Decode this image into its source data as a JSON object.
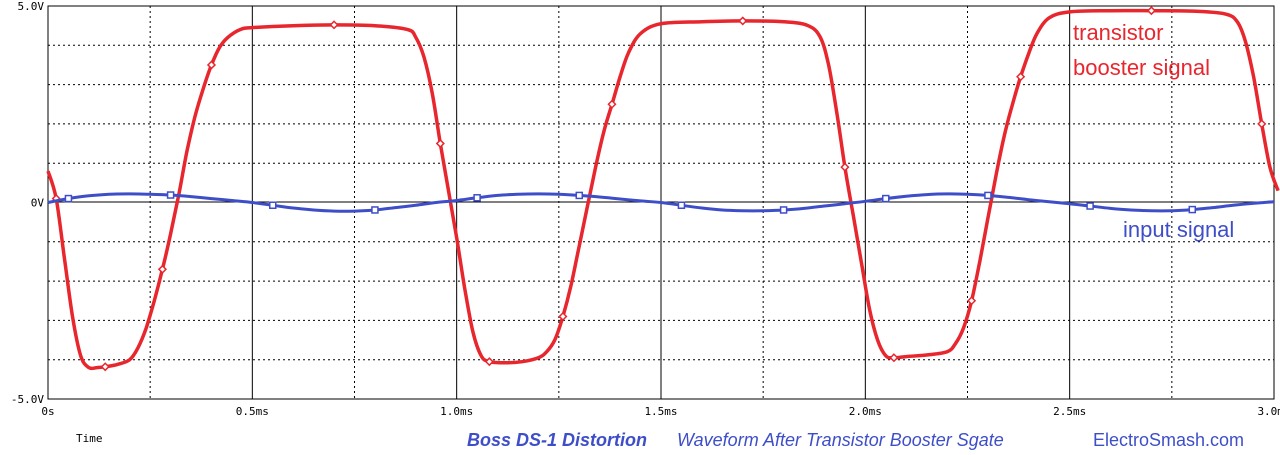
{
  "chart_data": {
    "type": "line",
    "x_unit": "ms",
    "xlim": [
      0,
      3.0
    ],
    "ylim": [
      -5.0,
      5.0
    ],
    "xlabel": "Time",
    "x_ticks": [
      {
        "value": 0,
        "label": "0s"
      },
      {
        "value": 0.5,
        "label": "0.5ms"
      },
      {
        "value": 1.0,
        "label": "1.0ms"
      },
      {
        "value": 1.5,
        "label": "1.5ms"
      },
      {
        "value": 2.0,
        "label": "2.0ms"
      },
      {
        "value": 2.5,
        "label": "2.5ms"
      },
      {
        "value": 3.0,
        "label": "3.0ms"
      }
    ],
    "y_ticks": [
      {
        "value": 5.0,
        "label": "5.0V"
      },
      {
        "value": 0,
        "label": "0V"
      },
      {
        "value": -5.0,
        "label": "-5.0V"
      }
    ],
    "grid": true,
    "series": [
      {
        "name": "transistor booster signal",
        "color": "#e8262d",
        "marker": "diamond",
        "x": [
          0,
          0.02,
          0.04,
          0.06,
          0.08,
          0.1,
          0.12,
          0.14,
          0.17,
          0.2,
          0.22,
          0.24,
          0.26,
          0.28,
          0.3,
          0.32,
          0.34,
          0.36,
          0.38,
          0.4,
          0.42,
          0.44,
          0.47,
          0.5,
          0.6,
          0.7,
          0.8,
          0.88,
          0.9,
          0.92,
          0.94,
          0.96,
          0.98,
          1.0,
          1.02,
          1.04,
          1.06,
          1.08,
          1.12,
          1.16,
          1.2,
          1.22,
          1.24,
          1.26,
          1.28,
          1.3,
          1.32,
          1.34,
          1.36,
          1.38,
          1.4,
          1.42,
          1.45,
          1.5,
          1.6,
          1.7,
          1.8,
          1.86,
          1.89,
          1.91,
          1.93,
          1.95,
          1.97,
          1.99,
          2.01,
          2.03,
          2.05,
          2.07,
          2.1,
          2.15,
          2.2,
          2.22,
          2.24,
          2.26,
          2.28,
          2.3,
          2.32,
          2.34,
          2.36,
          2.38,
          2.4,
          2.42,
          2.45,
          2.5,
          2.6,
          2.7,
          2.8,
          2.88,
          2.91,
          2.93,
          2.95,
          2.97,
          2.99,
          3.01
        ],
        "y": [
          0.8,
          0.1,
          -1.4,
          -2.9,
          -3.9,
          -4.2,
          -4.2,
          -4.18,
          -4.12,
          -4.0,
          -3.7,
          -3.2,
          -2.5,
          -1.7,
          -0.8,
          0.2,
          1.3,
          2.2,
          2.9,
          3.5,
          3.95,
          4.2,
          4.4,
          4.45,
          4.5,
          4.52,
          4.5,
          4.4,
          4.2,
          3.7,
          2.8,
          1.5,
          0.3,
          -0.9,
          -2.2,
          -3.3,
          -3.9,
          -4.05,
          -4.08,
          -4.05,
          -3.95,
          -3.8,
          -3.5,
          -2.9,
          -2.1,
          -1.1,
          -0.1,
          0.9,
          1.8,
          2.5,
          3.2,
          3.8,
          4.3,
          4.55,
          4.6,
          4.62,
          4.6,
          4.5,
          4.2,
          3.5,
          2.3,
          0.9,
          -0.3,
          -1.5,
          -2.7,
          -3.5,
          -3.9,
          -3.95,
          -3.92,
          -3.88,
          -3.8,
          -3.6,
          -3.2,
          -2.5,
          -1.5,
          -0.4,
          0.7,
          1.7,
          2.5,
          3.2,
          3.8,
          4.3,
          4.7,
          4.85,
          4.88,
          4.88,
          4.87,
          4.8,
          4.6,
          4.1,
          3.2,
          2.0,
          0.9,
          0.3
        ]
      },
      {
        "name": "input signal",
        "color": "#3e4ec8",
        "marker": "square",
        "x": [
          0,
          0.05,
          0.1,
          0.15,
          0.2,
          0.25,
          0.3,
          0.35,
          0.4,
          0.45,
          0.5,
          0.55,
          0.6,
          0.65,
          0.7,
          0.75,
          0.8,
          0.85,
          0.9,
          0.95,
          1.0,
          1.05,
          1.1,
          1.15,
          1.2,
          1.25,
          1.3,
          1.35,
          1.4,
          1.45,
          1.5,
          1.55,
          1.6,
          1.65,
          1.7,
          1.75,
          1.8,
          1.85,
          1.9,
          1.95,
          2.0,
          2.05,
          2.1,
          2.15,
          2.2,
          2.25,
          2.3,
          2.35,
          2.4,
          2.45,
          2.5,
          2.55,
          2.6,
          2.65,
          2.7,
          2.75,
          2.8,
          2.85,
          2.9,
          2.95,
          3.0
        ],
        "y": [
          0,
          0.1,
          0.17,
          0.21,
          0.22,
          0.21,
          0.19,
          0.15,
          0.1,
          0.05,
          0,
          -0.07,
          -0.14,
          -0.19,
          -0.22,
          -0.22,
          -0.19,
          -0.13,
          -0.07,
          0,
          0.05,
          0.12,
          0.18,
          0.21,
          0.22,
          0.21,
          0.18,
          0.14,
          0.09,
          0.04,
          0,
          -0.07,
          -0.14,
          -0.19,
          -0.21,
          -0.21,
          -0.19,
          -0.15,
          -0.09,
          -0.03,
          0.03,
          0.1,
          0.16,
          0.2,
          0.22,
          0.21,
          0.18,
          0.13,
          0.07,
          0.02,
          -0.03,
          -0.09,
          -0.15,
          -0.19,
          -0.21,
          -0.21,
          -0.18,
          -0.13,
          -0.07,
          -0.02,
          0.02
        ]
      }
    ],
    "annotations": [
      {
        "text": "transistor",
        "color": "#e8262d"
      },
      {
        "text": "booster signal",
        "color": "#e8262d"
      },
      {
        "text": "input signal",
        "color": "#3e4ec8"
      }
    ]
  },
  "caption": {
    "title_bold": "Boss DS-1 Distortion",
    "title_italic": "Waveform After Transistor Booster Sgate",
    "site": "ElectroSmash.com",
    "color": "#3e4ec8"
  }
}
